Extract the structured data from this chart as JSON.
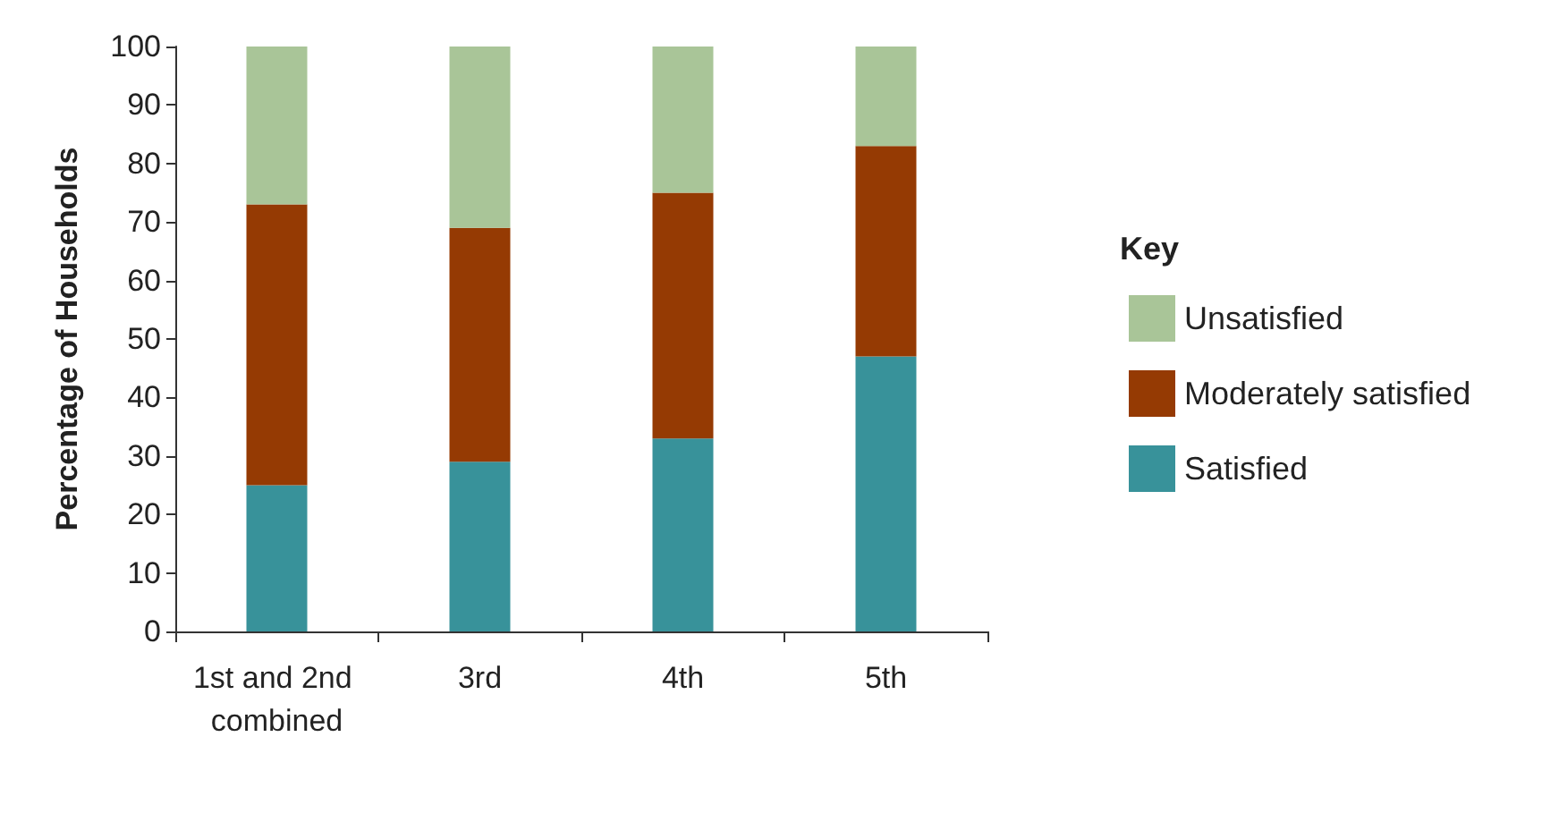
{
  "chart_data": {
    "type": "bar",
    "stacked": true,
    "ylabel": "Percentage of Households",
    "legend_title": "Key",
    "legend": "right",
    "categories": [
      "1st and 2nd combined",
      "3rd",
      "4th",
      "5th"
    ],
    "series": [
      {
        "name": "Satisfied",
        "color": "#38929a",
        "values": [
          25,
          29,
          33,
          47
        ]
      },
      {
        "name": "Moderately satisfied",
        "color": "#953a03",
        "values": [
          48,
          40,
          42,
          36
        ]
      },
      {
        "name": "Unsatisfied",
        "color": "#a9c598",
        "values": [
          27,
          31,
          25,
          17
        ]
      }
    ],
    "ylim": [
      0,
      100
    ],
    "yticks": [
      0,
      10,
      20,
      30,
      40,
      50,
      60,
      70,
      80,
      90,
      100
    ],
    "grid": false
  }
}
